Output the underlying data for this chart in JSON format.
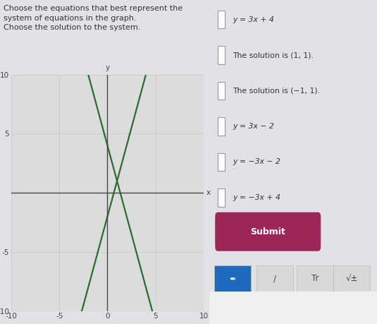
{
  "title_line1": "Choose the equations that best represent the",
  "title_line2": "system of equations in the graph.",
  "title_line3": "Choose the solution to the system.",
  "line1_slope": 3,
  "line1_intercept": -2,
  "line2_slope": -3,
  "line2_intercept": 4,
  "line_color": "#2d6a2d",
  "line_width": 1.6,
  "xlim": [
    -10,
    10
  ],
  "ylim": [
    -10,
    10
  ],
  "xticks": [
    -10,
    -5,
    0,
    5,
    10
  ],
  "yticks": [
    -10,
    -5,
    0,
    5,
    10
  ],
  "ytick_labels_show": [
    "-10",
    "-5",
    "",
    "5",
    "10"
  ],
  "grid_color": "#c8c8c8",
  "bg_color": "#e2e2e6",
  "plot_bg_color": "#dcdcdc",
  "right_bg_color": "#e8e8ec",
  "axis_label_x": "x",
  "axis_label_y": "y",
  "checkbox_options": [
    "y = 3x + 4",
    "The solution is (1, 1).",
    "The solution is (−1, 1).",
    "y = 3x − 2",
    "y = −3x − 2",
    "y = −3x + 4"
  ],
  "submit_bg": "#9c2657",
  "submit_text": "Submit",
  "toolbar_pencil_bg": "#1e6abf",
  "toolbar_bg": "#d8d8d8",
  "tick_label_size": 7.5,
  "axis_color": "#444444",
  "text_color": "#333333"
}
